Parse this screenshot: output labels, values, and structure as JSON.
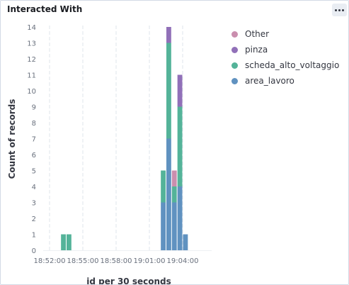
{
  "panel": {
    "title": "Interacted With"
  },
  "chart_data": {
    "type": "bar",
    "stacked": true,
    "xlabel": "id per 30 seconds",
    "ylabel": "Count of records",
    "ylim": [
      0,
      14
    ],
    "yticks": [
      "0",
      "1",
      "2",
      "3",
      "4",
      "5",
      "6",
      "7",
      "8",
      "9",
      "10",
      "11",
      "12",
      "13",
      "14"
    ],
    "xticks": [
      "18:52:00",
      "18:55:00",
      "18:58:00",
      "19:01:00",
      "19:04:00"
    ],
    "grid": true,
    "legend_position": "right",
    "bins": [
      "18:53:00",
      "18:53:30",
      "19:02:00",
      "19:02:30",
      "19:03:00",
      "19:03:30",
      "19:04:00"
    ],
    "series": [
      {
        "name": "area_lavoro",
        "color": "#6092c0",
        "values": [
          0,
          0,
          3,
          7,
          3,
          4,
          1
        ]
      },
      {
        "name": "scheda_alto_voltaggio",
        "color": "#54b399",
        "values": [
          1,
          1,
          2,
          6,
          1,
          5,
          0
        ]
      },
      {
        "name": "pinza",
        "color": "#9170b8",
        "values": [
          0,
          0,
          0,
          1,
          0,
          2,
          0
        ]
      },
      {
        "name": "Other",
        "color": "#ca8eae",
        "values": [
          0,
          0,
          0,
          0,
          1,
          0,
          0
        ]
      }
    ],
    "legend": [
      "Other",
      "pinza",
      "scheda_alto_voltaggio",
      "area_lavoro"
    ]
  }
}
